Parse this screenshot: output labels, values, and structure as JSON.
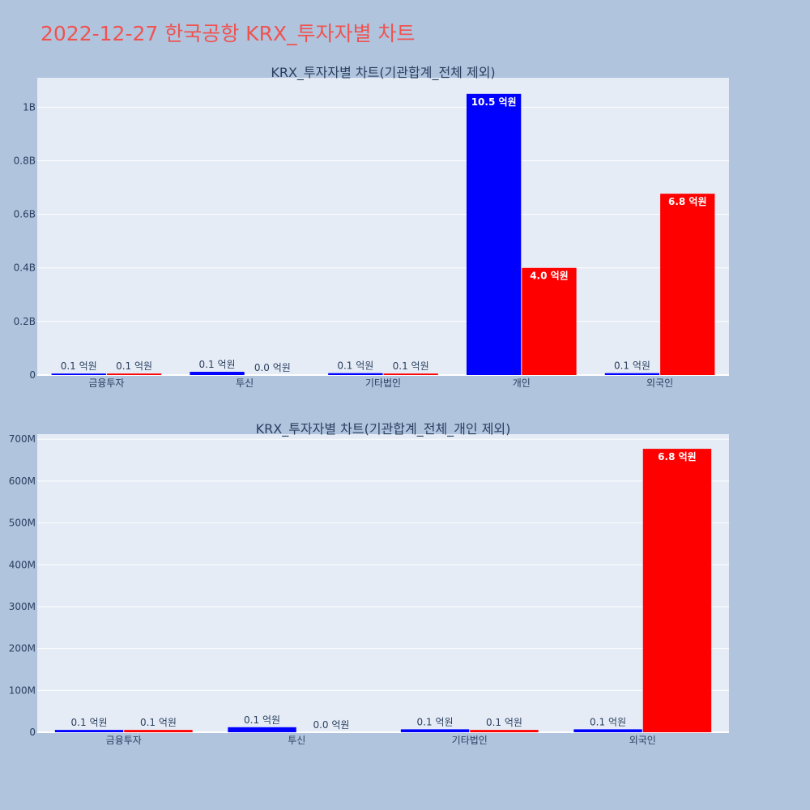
{
  "page_title": "2022-12-27 한국공항 KRX_투자자별 차트",
  "colors": {
    "page_background": "#b0c4de",
    "plot_background": "#e5ecf6",
    "grid": "#ffffff",
    "title": "#ef5350",
    "text": "#2a3f5f",
    "buy": "#0000ff",
    "sell": "#ff0000"
  },
  "chart_data": [
    {
      "type": "bar",
      "title": "KRX_투자자별 차트(기관합계_전체 제외)",
      "categories": [
        "금융투자",
        "투신",
        "기타법인",
        "개인",
        "외국인"
      ],
      "y_ticks": [
        {
          "value": 0,
          "label": "0"
        },
        {
          "value": 200000000,
          "label": "0.2B"
        },
        {
          "value": 400000000,
          "label": "0.4B"
        },
        {
          "value": 600000000,
          "label": "0.6B"
        },
        {
          "value": 800000000,
          "label": "0.8B"
        },
        {
          "value": 1000000000,
          "label": "1B"
        }
      ],
      "ylim": [
        0,
        1110000000
      ],
      "series": [
        {
          "color": "#0000ff",
          "values": [
            5500000,
            12000000,
            7000000,
            1050000000,
            7000000
          ],
          "labels": [
            "0.1 억원",
            "0.1 억원",
            "0.1 억원",
            "10.5 억원",
            "0.1 억원"
          ]
        },
        {
          "color": "#ff0000",
          "values": [
            5500000,
            0,
            5500000,
            400000000,
            677000000
          ],
          "labels": [
            "0.1 억원",
            "0.0 억원",
            "0.1 억원",
            "4.0 억원",
            "6.8 억원"
          ]
        }
      ]
    },
    {
      "type": "bar",
      "title": "KRX_투자자별 차트(기관합계_전체_개인 제외)",
      "categories": [
        "금융투자",
        "투신",
        "기타법인",
        "외국인"
      ],
      "y_ticks": [
        {
          "value": 0,
          "label": "0"
        },
        {
          "value": 100000000,
          "label": "100M"
        },
        {
          "value": 200000000,
          "label": "200M"
        },
        {
          "value": 300000000,
          "label": "300M"
        },
        {
          "value": 400000000,
          "label": "400M"
        },
        {
          "value": 500000000,
          "label": "500M"
        },
        {
          "value": 600000000,
          "label": "600M"
        },
        {
          "value": 700000000,
          "label": "700M"
        }
      ],
      "ylim": [
        0,
        712000000
      ],
      "series": [
        {
          "color": "#0000ff",
          "values": [
            5500000,
            12000000,
            7000000,
            7000000
          ],
          "labels": [
            "0.1 억원",
            "0.1 억원",
            "0.1 억원",
            "0.1 억원"
          ]
        },
        {
          "color": "#ff0000",
          "values": [
            5500000,
            0,
            5500000,
            677000000
          ],
          "labels": [
            "0.1 억원",
            "0.0 억원",
            "0.1 억원",
            "6.8 억원"
          ]
        }
      ]
    }
  ]
}
